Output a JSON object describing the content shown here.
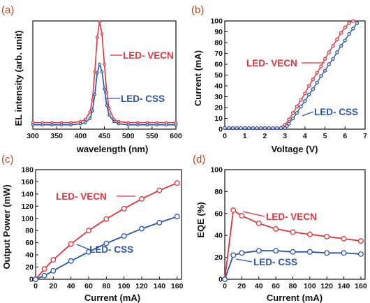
{
  "colors": {
    "red": "#e8323c",
    "blue": "#2a55b0",
    "panel_label": "#b04a1f",
    "axis": "#111111"
  },
  "chart_data": [
    {
      "panel": "(a)",
      "type": "line",
      "xlabel": "wavelength (nm)",
      "ylabel": "EL intensity (arb. unit)",
      "xlim": [
        300,
        600
      ],
      "ylim": [
        0,
        1
      ],
      "xticks": [
        300,
        350,
        400,
        450,
        500,
        550,
        600
      ],
      "yticks": [],
      "series": [
        {
          "name": "LED- VECN",
          "color": "#e8323c",
          "x": [
            300,
            320,
            340,
            360,
            380,
            400,
            410,
            420,
            425,
            430,
            435,
            440,
            445,
            450,
            455,
            460,
            470,
            480,
            500,
            520,
            540,
            560,
            580,
            600
          ],
          "y": [
            0.06,
            0.06,
            0.06,
            0.06,
            0.06,
            0.07,
            0.09,
            0.16,
            0.27,
            0.53,
            0.85,
            0.99,
            0.88,
            0.6,
            0.34,
            0.19,
            0.09,
            0.07,
            0.06,
            0.06,
            0.06,
            0.06,
            0.06,
            0.06
          ]
        },
        {
          "name": "LED- CSS",
          "color": "#2a55b0",
          "x": [
            300,
            320,
            340,
            360,
            380,
            400,
            410,
            420,
            425,
            430,
            435,
            440,
            445,
            450,
            455,
            460,
            470,
            480,
            500,
            520,
            540,
            560,
            580,
            600
          ],
          "y": [
            0.04,
            0.04,
            0.04,
            0.04,
            0.04,
            0.05,
            0.06,
            0.1,
            0.17,
            0.32,
            0.52,
            0.6,
            0.53,
            0.37,
            0.22,
            0.13,
            0.07,
            0.05,
            0.04,
            0.04,
            0.04,
            0.04,
            0.04,
            0.04
          ]
        }
      ]
    },
    {
      "panel": "(b)",
      "type": "line",
      "xlabel": "Voltage (V)",
      "ylabel": "Current (mA)",
      "xlim": [
        0,
        7
      ],
      "ylim": [
        0,
        100
      ],
      "xticks": [
        0,
        1,
        2,
        3,
        4,
        5,
        6,
        7
      ],
      "yticks": [
        0,
        10,
        20,
        30,
        40,
        50,
        60,
        70,
        80,
        90,
        100
      ],
      "series": [
        {
          "name": "LED- VECN",
          "color": "#e8323c",
          "x": [
            0,
            0.2,
            0.4,
            0.6,
            0.8,
            1.0,
            1.2,
            1.4,
            1.6,
            1.8,
            2.0,
            2.2,
            2.4,
            2.6,
            2.8,
            2.9,
            3.0,
            3.2,
            3.4,
            3.6,
            3.8,
            4.0,
            4.2,
            4.4,
            4.6,
            4.8,
            5.0,
            5.2,
            5.4,
            5.6,
            5.8,
            6.0,
            6.2,
            6.4
          ],
          "y": [
            1,
            1,
            1,
            1,
            1,
            1,
            1,
            1,
            1,
            1,
            1,
            1,
            1,
            1,
            1,
            2,
            4,
            9,
            15,
            21,
            27,
            33,
            40,
            46,
            52,
            58,
            65,
            71,
            77,
            83,
            89,
            94,
            98,
            100
          ]
        },
        {
          "name": "LED- CSS",
          "color": "#2a55b0",
          "x": [
            0,
            0.2,
            0.4,
            0.6,
            0.8,
            1.0,
            1.2,
            1.4,
            1.6,
            1.8,
            2.0,
            2.2,
            2.4,
            2.6,
            2.8,
            3.0,
            3.1,
            3.2,
            3.4,
            3.6,
            3.8,
            4.0,
            4.2,
            4.4,
            4.6,
            4.8,
            5.0,
            5.2,
            5.4,
            5.6,
            5.8,
            6.0,
            6.2,
            6.4,
            6.6
          ],
          "y": [
            1,
            1,
            1,
            1,
            1,
            1,
            1,
            1,
            1,
            1,
            1,
            1,
            1,
            1,
            1,
            1,
            3,
            5,
            10,
            15,
            21,
            26,
            32,
            37,
            43,
            49,
            54,
            60,
            65,
            71,
            77,
            82,
            88,
            93,
            98
          ]
        }
      ]
    },
    {
      "panel": "(c)",
      "type": "line",
      "xlabel": "Current (mA)",
      "ylabel": "Output Power (mW)",
      "xlim": [
        0,
        165
      ],
      "ylim": [
        0,
        180
      ],
      "xticks": [
        0,
        20,
        40,
        60,
        80,
        100,
        120,
        140,
        160
      ],
      "yticks": [
        0,
        20,
        40,
        60,
        80,
        100,
        120,
        140,
        160,
        180
      ],
      "series": [
        {
          "name": "LED- VECN",
          "color": "#e8323c",
          "x": [
            0,
            10,
            20,
            40,
            60,
            80,
            100,
            120,
            140,
            160
          ],
          "y": [
            0,
            17,
            32,
            58,
            80,
            99,
            116,
            132,
            146,
            158
          ]
        },
        {
          "name": "LED- CSS",
          "color": "#2a55b0",
          "x": [
            0,
            10,
            20,
            40,
            60,
            80,
            100,
            120,
            140,
            160
          ],
          "y": [
            0,
            6,
            14,
            30,
            45,
            59,
            71,
            83,
            93,
            103
          ]
        }
      ]
    },
    {
      "panel": "(d)",
      "type": "line",
      "xlabel": "Current (mA)",
      "ylabel": "EQE (%)",
      "xlim": [
        0,
        165
      ],
      "ylim": [
        0,
        100
      ],
      "xticks": [
        0,
        20,
        40,
        60,
        80,
        100,
        120,
        140,
        160
      ],
      "yticks": [
        0,
        20,
        40,
        60,
        80,
        100
      ],
      "series": [
        {
          "name": "LED- VECN",
          "color": "#e8323c",
          "x": [
            0,
            10,
            20,
            40,
            60,
            80,
            100,
            120,
            140,
            160
          ],
          "y": [
            0,
            63,
            58,
            51,
            46,
            43,
            41,
            39,
            37,
            35
          ]
        },
        {
          "name": "LED- CSS",
          "color": "#2a55b0",
          "x": [
            0,
            10,
            20,
            40,
            60,
            80,
            100,
            120,
            140,
            160
          ],
          "y": [
            0,
            22,
            24,
            26,
            26,
            25,
            25,
            24,
            24,
            23
          ]
        }
      ]
    }
  ]
}
